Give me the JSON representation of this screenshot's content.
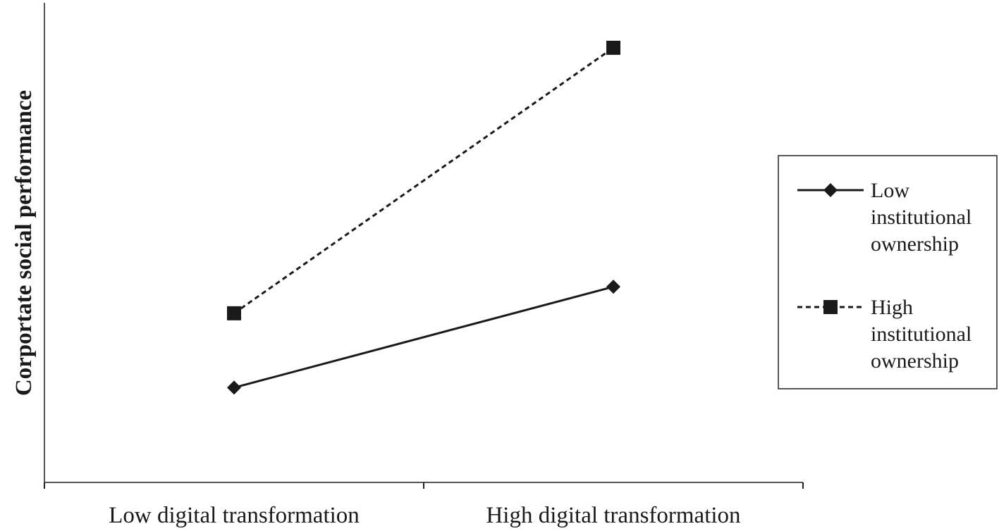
{
  "chart_data": {
    "type": "line",
    "categories": [
      "Low digital transformation",
      "High digital transformation"
    ],
    "ylabel": "Corportate social performance",
    "xlabel": "",
    "ylim": [
      0,
      10
    ],
    "grid": false,
    "legend_position": "right",
    "series": [
      {
        "name": "Low\ninstitutional\nownership",
        "values": [
          2.7,
          4.6
        ],
        "marker": "diamond",
        "line_style": "solid",
        "color": "#1a1a1a"
      },
      {
        "name": "High\ninstitutional\nownership",
        "values": [
          4.1,
          9.1
        ],
        "marker": "square",
        "line_style": "dashed",
        "color": "#1a1a1a"
      }
    ]
  }
}
